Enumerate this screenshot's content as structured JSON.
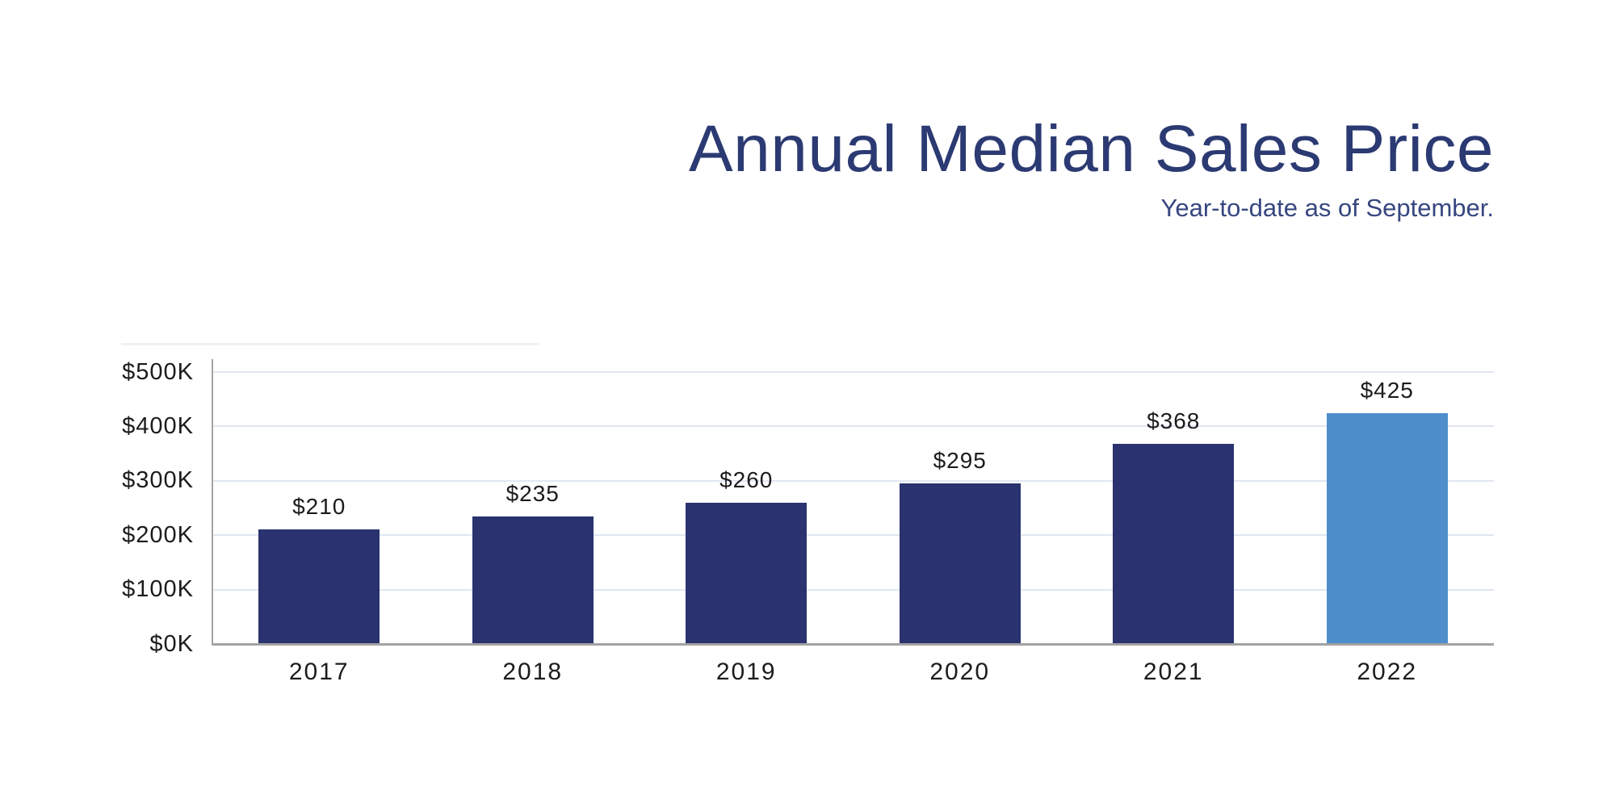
{
  "chart_data": {
    "type": "bar",
    "title": "Annual Median Sales Price",
    "subtitle": "Year-to-date as of September.",
    "categories": [
      "2017",
      "2018",
      "2019",
      "2020",
      "2021",
      "2022"
    ],
    "values": [
      210,
      235,
      260,
      295,
      368,
      425
    ],
    "value_labels": [
      "$210",
      "$235",
      "$260",
      "$295",
      "$368",
      "$425"
    ],
    "units": "thousands of US dollars",
    "xlabel": "",
    "ylabel": "",
    "ytick_labels": [
      "$0K",
      "$100K",
      "$200K",
      "$300K",
      "$400K",
      "$500K"
    ],
    "ylim": [
      0,
      500
    ],
    "grid": "horizontal",
    "legend": "none",
    "highlight_index": 5,
    "colors": {
      "bar": "#2a326f",
      "highlight_bar": "#4e8ecb",
      "title": "#2b3a72",
      "subtitle": "#36467f",
      "gridline": "#e0e6f1",
      "axis": "#a3a3a3",
      "label": "#1c1c1c"
    }
  }
}
